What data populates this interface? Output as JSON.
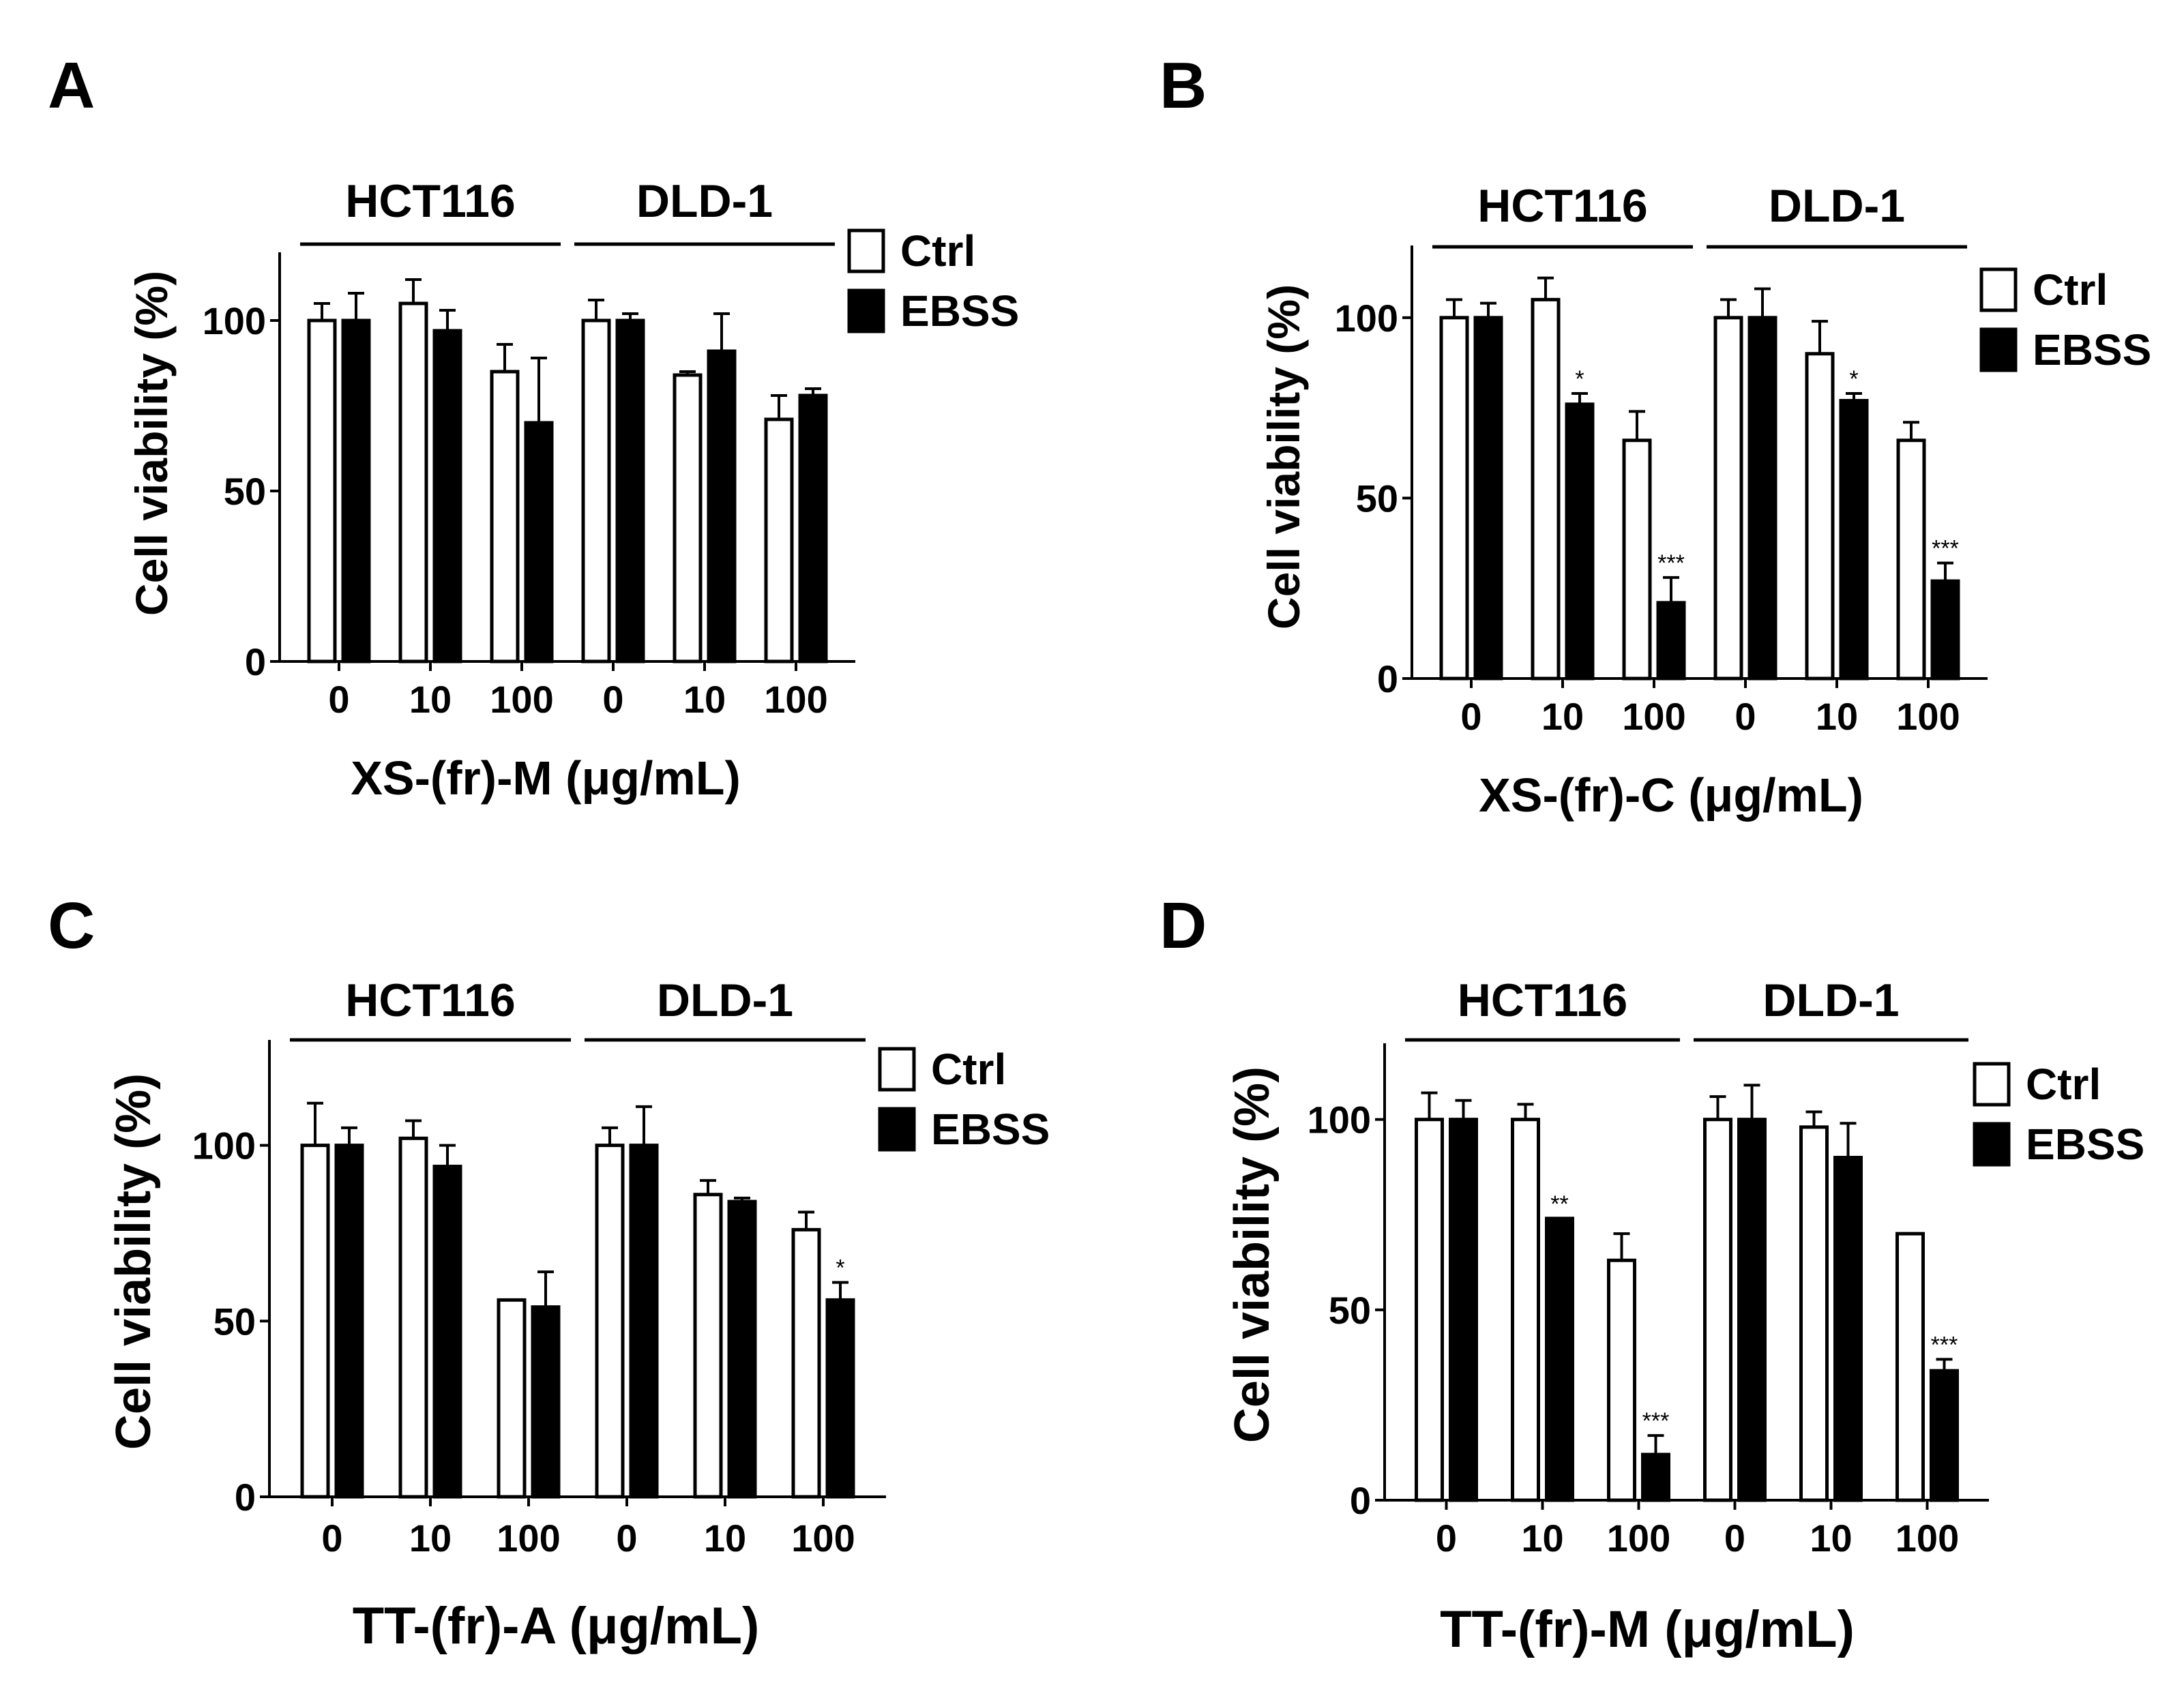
{
  "chart_data": [
    {
      "panel": "A",
      "type": "bar",
      "xlabel": "XS-(fr)-M (μg/mL)",
      "ylabel": "Cell viability (%)",
      "ylim": [
        0,
        120
      ],
      "yticks": [
        0,
        50,
        100
      ],
      "groups": [
        {
          "label": "HCT116",
          "categories": [
            "0",
            "10",
            "100"
          ]
        },
        {
          "label": "DLD-1",
          "categories": [
            "0",
            "10",
            "100"
          ]
        }
      ],
      "legend": [
        "Ctrl",
        "EBSS"
      ],
      "series": [
        {
          "name": "Ctrl",
          "values": [
            100,
            105,
            85,
            100,
            84,
            71
          ],
          "errors": [
            5,
            7,
            8,
            6,
            1,
            7
          ],
          "sig": [
            "",
            "",
            "",
            "",
            "",
            ""
          ]
        },
        {
          "name": "EBSS",
          "values": [
            100,
            97,
            70,
            100,
            91,
            78
          ],
          "errors": [
            8,
            6,
            19,
            2,
            11,
            2
          ],
          "sig": [
            "",
            "",
            "",
            "",
            "",
            ""
          ]
        }
      ]
    },
    {
      "panel": "B",
      "type": "bar",
      "xlabel": "XS-(fr)-C (μg/mL)",
      "ylabel": "Cell viability (%)",
      "ylim": [
        0,
        120
      ],
      "yticks": [
        0,
        50,
        100
      ],
      "groups": [
        {
          "label": "HCT116",
          "categories": [
            "0",
            "10",
            "100"
          ]
        },
        {
          "label": "DLD-1",
          "categories": [
            "0",
            "10",
            "100"
          ]
        }
      ],
      "legend": [
        "Ctrl",
        "EBSS"
      ],
      "series": [
        {
          "name": "Ctrl",
          "values": [
            100,
            105,
            66,
            100,
            90,
            66
          ],
          "errors": [
            5,
            6,
            8,
            5,
            9,
            5
          ],
          "sig": [
            "",
            "",
            "",
            "",
            "",
            ""
          ]
        },
        {
          "name": "EBSS",
          "values": [
            100,
            76,
            21,
            100,
            77,
            27
          ],
          "errors": [
            4,
            3,
            7,
            8,
            2,
            5
          ],
          "sig": [
            "",
            "*",
            "***",
            "",
            "*",
            "***"
          ]
        }
      ]
    },
    {
      "panel": "C",
      "type": "bar",
      "xlabel": "TT-(fr)-A (μg/mL)",
      "ylabel": "Cell viability (%)",
      "ylim": [
        0,
        130
      ],
      "yticks": [
        0,
        50,
        100
      ],
      "groups": [
        {
          "label": "HCT116",
          "categories": [
            "0",
            "10",
            "100"
          ]
        },
        {
          "label": "DLD-1",
          "categories": [
            "0",
            "10",
            "100"
          ]
        }
      ],
      "legend": [
        "Ctrl",
        "EBSS"
      ],
      "series": [
        {
          "name": "Ctrl",
          "values": [
            100,
            102,
            56,
            100,
            86,
            76
          ],
          "errors": [
            12,
            5,
            0,
            5,
            4,
            5
          ],
          "sig": [
            "",
            "",
            "",
            "",
            "",
            ""
          ]
        },
        {
          "name": "EBSS",
          "values": [
            100,
            94,
            54,
            100,
            84,
            56
          ],
          "errors": [
            5,
            6,
            10,
            11,
            1,
            5
          ],
          "sig": [
            "",
            "",
            "",
            "",
            "",
            "*"
          ]
        }
      ]
    },
    {
      "panel": "D",
      "type": "bar",
      "xlabel": "TT-(fr)-M (μg/mL)",
      "ylabel": "Cell viability (%)",
      "ylim": [
        0,
        120
      ],
      "yticks": [
        0,
        50,
        100
      ],
      "groups": [
        {
          "label": "HCT116",
          "categories": [
            "0",
            "10",
            "100"
          ]
        },
        {
          "label": "DLD-1",
          "categories": [
            "0",
            "10",
            "100"
          ]
        }
      ],
      "legend": [
        "Ctrl",
        "EBSS"
      ],
      "series": [
        {
          "name": "Ctrl",
          "values": [
            100,
            100,
            63,
            100,
            98,
            70
          ],
          "errors": [
            7,
            4,
            7,
            6,
            4,
            0
          ],
          "sig": [
            "",
            "",
            "",
            "",
            "",
            ""
          ]
        },
        {
          "name": "EBSS",
          "values": [
            100,
            74,
            12,
            100,
            90,
            34
          ],
          "errors": [
            5,
            0,
            5,
            9,
            9,
            3
          ],
          "sig": [
            "",
            "**",
            "***",
            "",
            "",
            "***"
          ]
        }
      ]
    }
  ]
}
